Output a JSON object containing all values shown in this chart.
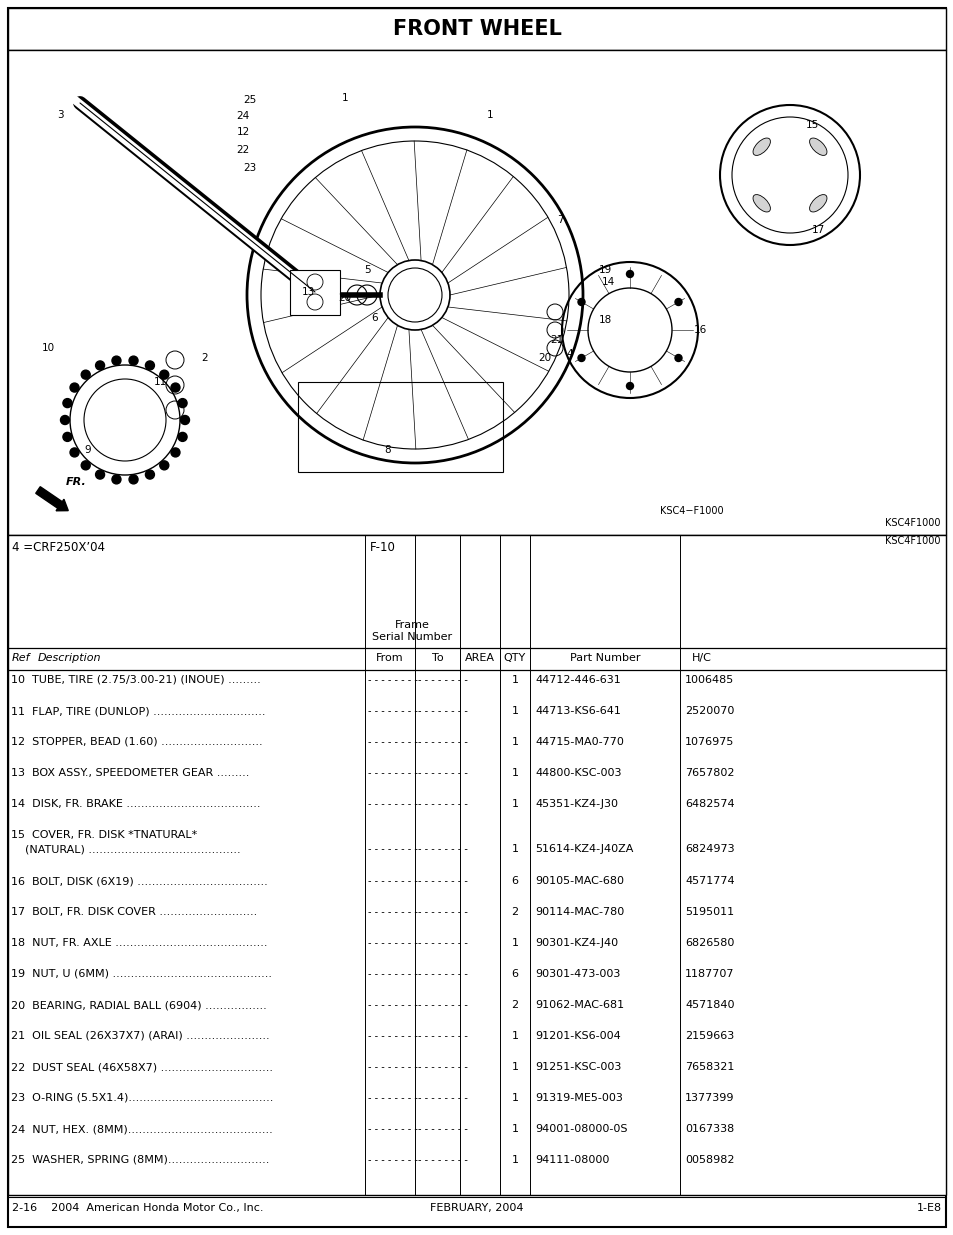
{
  "title": "FRONT WHEEL",
  "filter_label": "4 =CRF250X’04",
  "frame_label": "F-10",
  "header_note": "KSC4F1000",
  "parts": [
    {
      "ref": "10",
      "desc1": "TUBE, TIRE (2.75/3.00-21) (INOUE) .........",
      "desc2": "",
      "qty": "1",
      "part": "44712-446-631",
      "hc": "1006485"
    },
    {
      "ref": "11",
      "desc1": "FLAP, TIRE (DUNLOP) ...............................",
      "desc2": "",
      "qty": "1",
      "part": "44713-KS6-641",
      "hc": "2520070"
    },
    {
      "ref": "12",
      "desc1": "STOPPER, BEAD (1.60) ............................",
      "desc2": "",
      "qty": "1",
      "part": "44715-MA0-770",
      "hc": "1076975"
    },
    {
      "ref": "13",
      "desc1": "BOX ASSY., SPEEDOMETER GEAR .........",
      "desc2": "",
      "qty": "1",
      "part": "44800-KSC-003",
      "hc": "7657802"
    },
    {
      "ref": "14",
      "desc1": "DISK, FR. BRAKE .....................................",
      "desc2": "",
      "qty": "1",
      "part": "45351-KZ4-J30",
      "hc": "6482574"
    },
    {
      "ref": "15",
      "desc1": "COVER, FR. DISK *TNATURAL*",
      "desc2": "    (NATURAL) ..........................................",
      "qty": "1",
      "part": "51614-KZ4-J40ZA",
      "hc": "6824973"
    },
    {
      "ref": "16",
      "desc1": "BOLT, DISK (6X19) ....................................",
      "desc2": "",
      "qty": "6",
      "part": "90105-MAC-680",
      "hc": "4571774"
    },
    {
      "ref": "17",
      "desc1": "BOLT, FR. DISK COVER ...........................",
      "desc2": "",
      "qty": "2",
      "part": "90114-MAC-780",
      "hc": "5195011"
    },
    {
      "ref": "18",
      "desc1": "NUT, FR. AXLE ..........................................",
      "desc2": "",
      "qty": "1",
      "part": "90301-KZ4-J40",
      "hc": "6826580"
    },
    {
      "ref": "19",
      "desc1": "NUT, U (6MM) ............................................",
      "desc2": "",
      "qty": "6",
      "part": "90301-473-003",
      "hc": "1187707"
    },
    {
      "ref": "20",
      "desc1": "BEARING, RADIAL BALL (6904) .................",
      "desc2": "",
      "qty": "2",
      "part": "91062-MAC-681",
      "hc": "4571840"
    },
    {
      "ref": "21",
      "desc1": "OIL SEAL (26X37X7) (ARAI) .......................",
      "desc2": "",
      "qty": "1",
      "part": "91201-KS6-004",
      "hc": "2159663"
    },
    {
      "ref": "22",
      "desc1": "DUST SEAL (46X58X7) ...............................",
      "desc2": "",
      "qty": "1",
      "part": "91251-KSC-003",
      "hc": "7658321"
    },
    {
      "ref": "23",
      "desc1": "O-RING (5.5X1.4)........................................",
      "desc2": "",
      "qty": "1",
      "part": "91319-ME5-003",
      "hc": "1377399"
    },
    {
      "ref": "24",
      "desc1": "NUT, HEX. (8MM)........................................",
      "desc2": "",
      "qty": "1",
      "part": "94001-08000-0S",
      "hc": "0167338"
    },
    {
      "ref": "25",
      "desc1": "WASHER, SPRING (8MM)............................",
      "desc2": "",
      "qty": "1",
      "part": "94111-08000",
      "hc": "0058982"
    }
  ],
  "footer_left": "2-16    2004  American Honda Motor Co., Inc.",
  "footer_center": "FEBRUARY, 2004",
  "footer_right": "1-E8"
}
